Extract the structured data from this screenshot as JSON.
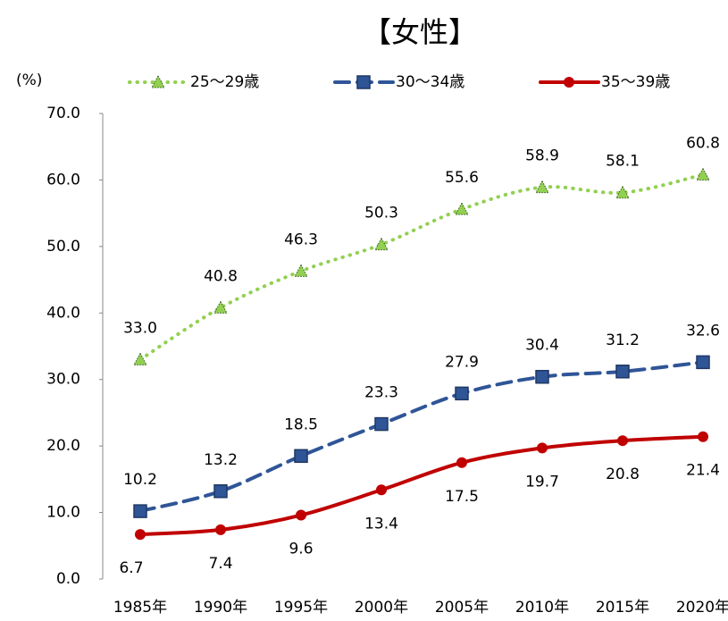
{
  "chart_data": {
    "type": "line",
    "title": "【女性】",
    "y_unit_label": "(%)",
    "categories": [
      "1985年",
      "1990年",
      "1995年",
      "2000年",
      "2005年",
      "2010年",
      "2015年",
      "2020年"
    ],
    "series": [
      {
        "name": "25～29歳",
        "color": "#92d050",
        "line_style": "dotted",
        "marker": "triangle",
        "values": [
          33.0,
          40.8,
          46.3,
          50.3,
          55.6,
          58.9,
          58.1,
          60.8
        ],
        "value_labels": [
          "33.0",
          "40.8",
          "46.3",
          "50.3",
          "55.6",
          "58.9",
          "58.1",
          "60.8"
        ]
      },
      {
        "name": "30～34歳",
        "color": "#2f5597",
        "line_style": "dashed",
        "marker": "square",
        "values": [
          10.2,
          13.2,
          18.5,
          23.3,
          27.9,
          30.4,
          31.2,
          32.6
        ],
        "value_labels": [
          "10.2",
          "13.2",
          "18.5",
          "23.3",
          "27.9",
          "30.4",
          "31.2",
          "32.6"
        ]
      },
      {
        "name": "35～39歳",
        "color": "#c00000",
        "line_style": "solid",
        "marker": "circle",
        "values": [
          6.7,
          7.4,
          9.6,
          13.4,
          17.5,
          19.7,
          20.8,
          21.4
        ],
        "value_labels": [
          "6.7",
          "7.4",
          "9.6",
          "13.4",
          "17.5",
          "19.7",
          "20.8",
          "21.4"
        ]
      }
    ],
    "ylim": [
      0,
      70
    ],
    "yticks": [
      {
        "value": 0,
        "label": "0.0"
      },
      {
        "value": 10,
        "label": "10.0"
      },
      {
        "value": 20,
        "label": "20.0"
      },
      {
        "value": 30,
        "label": "30.0"
      },
      {
        "value": 40,
        "label": "40.0"
      },
      {
        "value": 50,
        "label": "50.0"
      },
      {
        "value": 60,
        "label": "60.0"
      },
      {
        "value": 70,
        "label": "70.0"
      }
    ],
    "grid": false,
    "legend": "top"
  }
}
